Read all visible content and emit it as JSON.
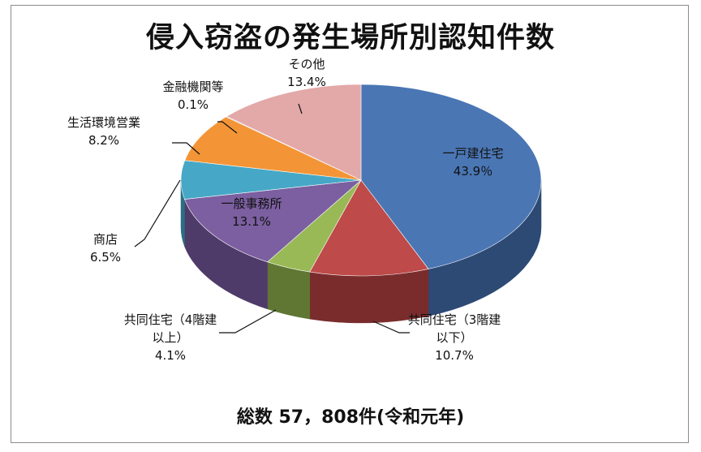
{
  "chart_data": {
    "type": "pie",
    "title": "侵入窃盗の発生場所別認知件数",
    "subtitle": "総数 57，808件(令和元年)",
    "slices": [
      {
        "name": "一戸建住宅",
        "value": 43.9,
        "label": "43.9％",
        "color": "#4a76b4",
        "side": "#2d4a75"
      },
      {
        "name": "共同住宅(3階建以下)",
        "value": 10.7,
        "label": "10.7%",
        "color": "#be4a49",
        "side": "#7a2c2c"
      },
      {
        "name": "共同住宅(4階建以上)",
        "value": 4.1,
        "label": "4.1%",
        "color": "#98b955",
        "side": "#5f7732"
      },
      {
        "name": "一般事務所",
        "value": 13.1,
        "label": "13.1%",
        "color": "#7b5fa0",
        "side": "#4f3b6a"
      },
      {
        "name": "商店",
        "value": 6.5,
        "label": "6.5%",
        "color": "#46a8c6",
        "side": "#2a6f85"
      },
      {
        "name": "生活環境営業",
        "value": 8.2,
        "label": "8.2%",
        "color": "#f39536",
        "side": "#b0651c"
      },
      {
        "name": "金融機関等",
        "value": 0.1,
        "label": "0.1%",
        "color": "#8fb0d9",
        "side": "#5f7fa8"
      },
      {
        "name": "その他",
        "value": 13.4,
        "label": "13.4%",
        "color": "#e3a8a8",
        "side": "#a87474"
      }
    ],
    "labels_display": [
      {
        "lines": [
          "一戸建住宅",
          "43.9％"
        ]
      },
      {
        "lines": [
          "共同住宅（3階建",
          "以下）",
          "10.7%"
        ]
      },
      {
        "lines": [
          "共同住宅（4階建",
          "以上）",
          "4.1%"
        ]
      },
      {
        "lines": [
          "一般事務所",
          "13.1%"
        ]
      },
      {
        "lines": [
          "商店",
          "6.5%"
        ]
      },
      {
        "lines": [
          "生活環境営業",
          "8.2%"
        ]
      },
      {
        "lines": [
          "金融機関等",
          "0.1%"
        ]
      },
      {
        "lines": [
          "その他",
          "13.4%"
        ]
      }
    ]
  }
}
